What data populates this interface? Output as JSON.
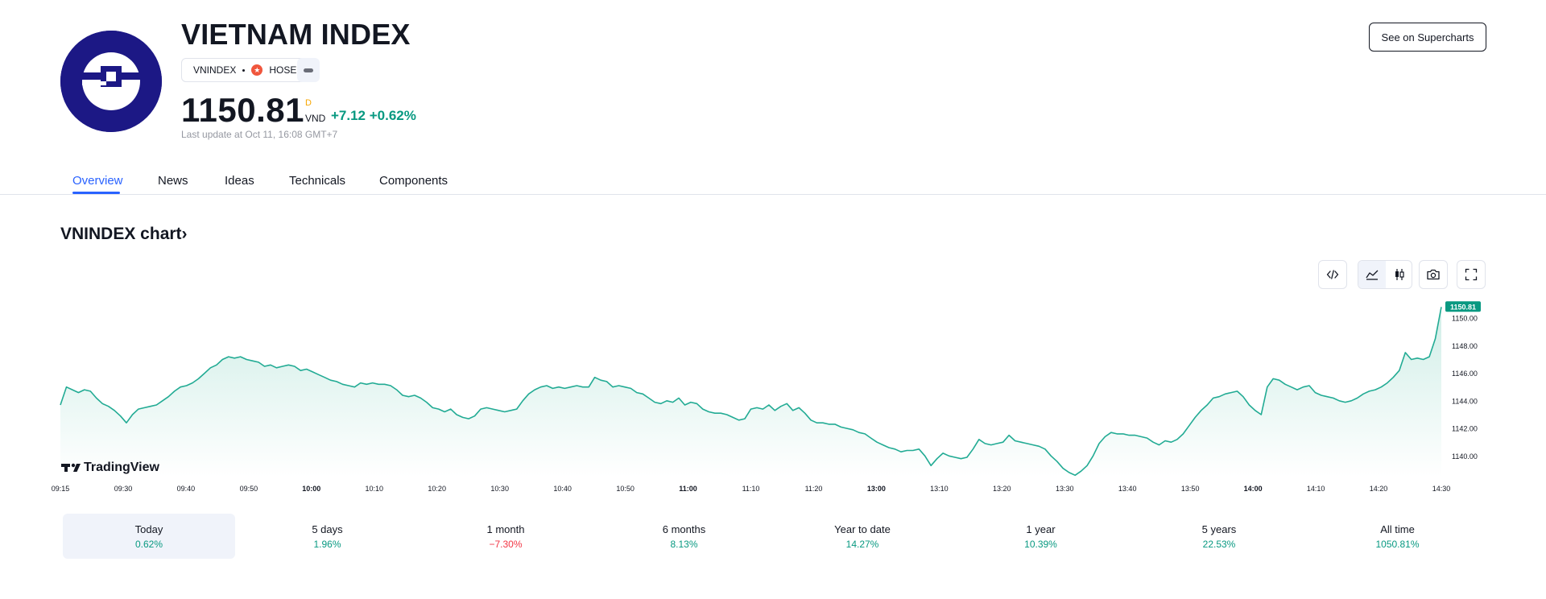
{
  "header": {
    "logo_icon": "vnindex-logo-icon",
    "title": "VIETNAM INDEX",
    "symbol": "VNINDEX",
    "exchange": "HOSE",
    "exchange_icon": "hose-exchange-icon",
    "more_icon": "more-icon",
    "price": "1150.81",
    "price_interval": "D",
    "currency": "VND",
    "change": "+7.12 +0.62%",
    "last_update": "Last update at Oct 11, 16:08 GMT+7",
    "supercharts_button": "See on Supercharts"
  },
  "tabs": [
    {
      "label": "Overview",
      "active": true
    },
    {
      "label": "News",
      "active": false
    },
    {
      "label": "Ideas",
      "active": false
    },
    {
      "label": "Technicals",
      "active": false
    },
    {
      "label": "Components",
      "active": false
    }
  ],
  "chart_section": {
    "heading": "VNINDEX chart",
    "heading_icon": "chevron-right-icon",
    "tools": [
      "embed-code-icon",
      "area-chart-icon",
      "candles-icon",
      "camera-icon",
      "fullscreen-icon"
    ],
    "selected_style": "area",
    "watermark": "TradingView"
  },
  "chart_data": {
    "type": "area",
    "last_price_label": "1150.81",
    "y_ticks": [
      "1150.00",
      "1148.00",
      "1146.00",
      "1144.00",
      "1142.00",
      "1140.00"
    ],
    "ylim": [
      1138.5,
      1151.0
    ],
    "x_ticks": [
      "09:15",
      "09:30",
      "09:40",
      "09:50",
      "10:00",
      "10:10",
      "10:20",
      "10:30",
      "10:40",
      "10:50",
      "11:00",
      "11:10",
      "11:20",
      "13:00",
      "13:10",
      "13:20",
      "13:30",
      "13:40",
      "13:50",
      "14:00",
      "14:10",
      "14:20",
      "14:30"
    ],
    "bold_x_ticks": [
      "10:00",
      "11:00",
      "13:00",
      "14:00"
    ],
    "values": [
      1143.7,
      1145.0,
      1144.8,
      1144.6,
      1144.8,
      1144.7,
      1144.2,
      1143.8,
      1143.6,
      1143.3,
      1142.9,
      1142.4,
      1143.0,
      1143.4,
      1143.5,
      1143.6,
      1143.7,
      1144.0,
      1144.3,
      1144.7,
      1145.0,
      1145.1,
      1145.3,
      1145.6,
      1146.0,
      1146.4,
      1146.6,
      1147.0,
      1147.2,
      1147.1,
      1147.2,
      1147.0,
      1146.9,
      1146.8,
      1146.5,
      1146.6,
      1146.4,
      1146.5,
      1146.6,
      1146.5,
      1146.2,
      1146.3,
      1146.1,
      1145.9,
      1145.7,
      1145.5,
      1145.4,
      1145.2,
      1145.1,
      1145.0,
      1145.3,
      1145.2,
      1145.3,
      1145.2,
      1145.2,
      1145.1,
      1144.8,
      1144.4,
      1144.3,
      1144.4,
      1144.2,
      1143.9,
      1143.5,
      1143.4,
      1143.2,
      1143.4,
      1143.0,
      1142.8,
      1142.7,
      1142.9,
      1143.4,
      1143.5,
      1143.4,
      1143.3,
      1143.2,
      1143.3,
      1143.4,
      1144.0,
      1144.5,
      1144.8,
      1145.0,
      1145.1,
      1144.9,
      1145.0,
      1144.9,
      1145.0,
      1145.1,
      1145.0,
      1145.0,
      1145.7,
      1145.5,
      1145.4,
      1145.0,
      1145.1,
      1145.0,
      1144.9,
      1144.6,
      1144.5,
      1144.2,
      1143.9,
      1143.8,
      1144.0,
      1143.9,
      1144.2,
      1143.7,
      1143.9,
      1143.8,
      1143.4,
      1143.2,
      1143.1,
      1143.1,
      1143.0,
      1142.8,
      1142.6,
      1142.7,
      1143.4,
      1143.5,
      1143.4,
      1143.7,
      1143.3,
      1143.6,
      1143.8,
      1143.3,
      1143.5,
      1143.1,
      1142.6,
      1142.4,
      1142.4,
      1142.3,
      1142.3,
      1142.1,
      1142.0,
      1141.9,
      1141.7,
      1141.6,
      1141.3,
      1141.0,
      1140.8,
      1140.6,
      1140.5,
      1140.3,
      1140.4,
      1140.4,
      1140.5,
      1140.0,
      1139.3,
      1139.8,
      1140.2,
      1140.0,
      1139.9,
      1139.8,
      1139.9,
      1140.5,
      1141.2,
      1140.9,
      1140.8,
      1140.9,
      1141.0,
      1141.5,
      1141.1,
      1141.0,
      1140.9,
      1140.8,
      1140.7,
      1140.5,
      1140.0,
      1139.6,
      1139.1,
      1138.8,
      1138.6,
      1138.9,
      1139.3,
      1140.0,
      1140.9,
      1141.4,
      1141.7,
      1141.6,
      1141.6,
      1141.5,
      1141.5,
      1141.4,
      1141.3,
      1141.0,
      1140.8,
      1141.1,
      1141.0,
      1141.2,
      1141.6,
      1142.2,
      1142.8,
      1143.3,
      1143.7,
      1144.2,
      1144.3,
      1144.5,
      1144.6,
      1144.7,
      1144.3,
      1143.7,
      1143.3,
      1143.0,
      1145.0,
      1145.6,
      1145.5,
      1145.2,
      1145.0,
      1144.8,
      1145.0,
      1145.1,
      1144.6,
      1144.4,
      1144.3,
      1144.2,
      1144.0,
      1143.9,
      1144.0,
      1144.2,
      1144.5,
      1144.7,
      1144.8,
      1145.0,
      1145.3,
      1145.7,
      1146.2,
      1147.5,
      1147.0,
      1147.1,
      1147.0,
      1147.2,
      1148.5,
      1150.81
    ],
    "line_color": "#22ab94",
    "fill_color": "#c8ebe3",
    "label_bg": "#089981"
  },
  "periods": [
    {
      "label": "Today",
      "value": "0.62%",
      "dir": "pos",
      "selected": true
    },
    {
      "label": "5 days",
      "value": "1.96%",
      "dir": "pos",
      "selected": false
    },
    {
      "label": "1 month",
      "value": "−7.30%",
      "dir": "neg",
      "selected": false
    },
    {
      "label": "6 months",
      "value": "8.13%",
      "dir": "pos",
      "selected": false
    },
    {
      "label": "Year to date",
      "value": "14.27%",
      "dir": "pos",
      "selected": false
    },
    {
      "label": "1 year",
      "value": "10.39%",
      "dir": "pos",
      "selected": false
    },
    {
      "label": "5 years",
      "value": "22.53%",
      "dir": "pos",
      "selected": false
    },
    {
      "label": "All time",
      "value": "1050.81%",
      "dir": "pos",
      "selected": false
    }
  ]
}
